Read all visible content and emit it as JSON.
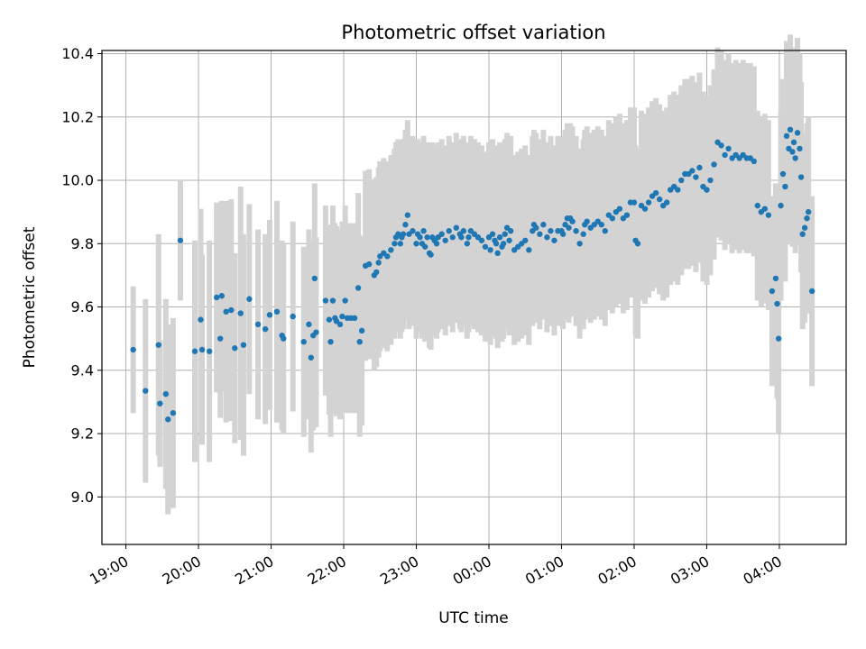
{
  "chart_data": {
    "type": "scatter",
    "title": "Photometric offset variation",
    "xlabel": "UTC time",
    "ylabel": "Photometric offset",
    "x_unit": "hours after 19:00 UTC",
    "xlim": [
      -0.33,
      9.92
    ],
    "ylim": [
      8.85,
      10.41
    ],
    "grid": true,
    "x_ticks": [
      {
        "value": 0,
        "label": "19:00"
      },
      {
        "value": 1,
        "label": "20:00"
      },
      {
        "value": 2,
        "label": "21:00"
      },
      {
        "value": 3,
        "label": "22:00"
      },
      {
        "value": 4,
        "label": "23:00"
      },
      {
        "value": 5,
        "label": "00:00"
      },
      {
        "value": 6,
        "label": "01:00"
      },
      {
        "value": 7,
        "label": "02:00"
      },
      {
        "value": 8,
        "label": "03:00"
      },
      {
        "value": 9,
        "label": "04:00"
      }
    ],
    "y_ticks": [
      {
        "value": 9.0,
        "label": "9.0"
      },
      {
        "value": 9.2,
        "label": "9.2"
      },
      {
        "value": 9.4,
        "label": "9.4"
      },
      {
        "value": 9.6,
        "label": "9.6"
      },
      {
        "value": 9.8,
        "label": "9.8"
      },
      {
        "value": 10.0,
        "label": "10.0"
      },
      {
        "value": 10.2,
        "label": "10.2"
      },
      {
        "value": 10.4,
        "label": "10.4"
      }
    ],
    "marker_color": "#1f77b4",
    "errorbar_color": "#d3d3d3",
    "points": [
      [
        0.1,
        9.465,
        0.2
      ],
      [
        0.27,
        9.335,
        0.29
      ],
      [
        0.45,
        9.48,
        0.35
      ],
      [
        0.47,
        9.295,
        0.2
      ],
      [
        0.55,
        9.325,
        0.3
      ],
      [
        0.58,
        9.245,
        0.3
      ],
      [
        0.65,
        9.265,
        0.3
      ],
      [
        0.75,
        9.81,
        0.19
      ],
      [
        0.95,
        9.46,
        0.35
      ],
      [
        1.03,
        9.56,
        0.35
      ],
      [
        1.05,
        9.465,
        0.3
      ],
      [
        1.15,
        9.46,
        0.35
      ],
      [
        1.25,
        9.63,
        0.3
      ],
      [
        1.3,
        9.5,
        0.25
      ],
      [
        1.32,
        9.635,
        0.3
      ],
      [
        1.38,
        9.585,
        0.35
      ],
      [
        1.45,
        9.59,
        0.35
      ],
      [
        1.5,
        9.47,
        0.3
      ],
      [
        1.58,
        9.58,
        0.4
      ],
      [
        1.62,
        9.48,
        0.35
      ],
      [
        1.7,
        9.625,
        0.3
      ],
      [
        1.82,
        9.545,
        0.3
      ],
      [
        1.92,
        9.53,
        0.3
      ],
      [
        1.98,
        9.575,
        0.3
      ],
      [
        2.08,
        9.585,
        0.35
      ],
      [
        2.15,
        9.51,
        0.3
      ],
      [
        2.17,
        9.5,
        0.3
      ],
      [
        2.3,
        9.57,
        0.3
      ],
      [
        2.45,
        9.49,
        0.3
      ],
      [
        2.52,
        9.545,
        0.3
      ],
      [
        2.55,
        9.44,
        0.3
      ],
      [
        2.58,
        9.51,
        0.3
      ],
      [
        2.6,
        9.69,
        0.3
      ],
      [
        2.62,
        9.52,
        0.3
      ],
      [
        2.75,
        9.62,
        0.3
      ],
      [
        2.8,
        9.56,
        0.3
      ],
      [
        2.82,
        9.49,
        0.3
      ],
      [
        2.85,
        9.62,
        0.3
      ],
      [
        2.88,
        9.565,
        0.3
      ],
      [
        2.9,
        9.555,
        0.3
      ],
      [
        2.95,
        9.545,
        0.3
      ],
      [
        2.98,
        9.57,
        0.3
      ],
      [
        3.02,
        9.62,
        0.3
      ],
      [
        3.05,
        9.565,
        0.3
      ],
      [
        3.1,
        9.565,
        0.3
      ],
      [
        3.15,
        9.565,
        0.3
      ],
      [
        3.2,
        9.66,
        0.3
      ],
      [
        3.22,
        9.49,
        0.3
      ],
      [
        3.25,
        9.525,
        0.3
      ],
      [
        3.3,
        9.73,
        0.3
      ],
      [
        3.35,
        9.735,
        0.3
      ],
      [
        3.42,
        9.7,
        0.3
      ],
      [
        3.45,
        9.71,
        0.3
      ],
      [
        3.48,
        9.74,
        0.3
      ],
      [
        3.5,
        9.76,
        0.3
      ],
      [
        3.55,
        9.77,
        0.3
      ],
      [
        3.6,
        9.76,
        0.3
      ],
      [
        3.65,
        9.78,
        0.3
      ],
      [
        3.7,
        9.8,
        0.3
      ],
      [
        3.72,
        9.82,
        0.3
      ],
      [
        3.75,
        9.83,
        0.3
      ],
      [
        3.78,
        9.8,
        0.3
      ],
      [
        3.8,
        9.82,
        0.3
      ],
      [
        3.82,
        9.83,
        0.3
      ],
      [
        3.85,
        9.86,
        0.3
      ],
      [
        3.88,
        9.89,
        0.3
      ],
      [
        3.9,
        9.83,
        0.3
      ],
      [
        3.95,
        9.84,
        0.3
      ],
      [
        4.0,
        9.8,
        0.3
      ],
      [
        4.02,
        9.83,
        0.3
      ],
      [
        4.05,
        9.82,
        0.3
      ],
      [
        4.08,
        9.8,
        0.3
      ],
      [
        4.1,
        9.84,
        0.3
      ],
      [
        4.12,
        9.79,
        0.3
      ],
      [
        4.15,
        9.82,
        0.3
      ],
      [
        4.18,
        9.77,
        0.3
      ],
      [
        4.2,
        9.765,
        0.3
      ],
      [
        4.22,
        9.82,
        0.3
      ],
      [
        4.25,
        9.81,
        0.3
      ],
      [
        4.28,
        9.8,
        0.3
      ],
      [
        4.3,
        9.82,
        0.3
      ],
      [
        4.35,
        9.83,
        0.3
      ],
      [
        4.4,
        9.81,
        0.3
      ],
      [
        4.45,
        9.84,
        0.3
      ],
      [
        4.5,
        9.82,
        0.3
      ],
      [
        4.55,
        9.85,
        0.3
      ],
      [
        4.6,
        9.83,
        0.3
      ],
      [
        4.62,
        9.82,
        0.3
      ],
      [
        4.65,
        9.84,
        0.3
      ],
      [
        4.7,
        9.8,
        0.3
      ],
      [
        4.72,
        9.82,
        0.3
      ],
      [
        4.75,
        9.84,
        0.3
      ],
      [
        4.8,
        9.83,
        0.3
      ],
      [
        4.85,
        9.82,
        0.3
      ],
      [
        4.9,
        9.81,
        0.3
      ],
      [
        4.95,
        9.79,
        0.3
      ],
      [
        5.0,
        9.82,
        0.3
      ],
      [
        5.02,
        9.78,
        0.3
      ],
      [
        5.05,
        9.83,
        0.3
      ],
      [
        5.08,
        9.81,
        0.3
      ],
      [
        5.1,
        9.8,
        0.3
      ],
      [
        5.12,
        9.77,
        0.3
      ],
      [
        5.15,
        9.82,
        0.3
      ],
      [
        5.18,
        9.79,
        0.3
      ],
      [
        5.2,
        9.8,
        0.3
      ],
      [
        5.22,
        9.83,
        0.3
      ],
      [
        5.25,
        9.85,
        0.3
      ],
      [
        5.28,
        9.81,
        0.3
      ],
      [
        5.3,
        9.84,
        0.3
      ],
      [
        5.35,
        9.78,
        0.3
      ],
      [
        5.4,
        9.79,
        0.3
      ],
      [
        5.45,
        9.8,
        0.3
      ],
      [
        5.5,
        9.81,
        0.3
      ],
      [
        5.55,
        9.78,
        0.3
      ],
      [
        5.6,
        9.84,
        0.3
      ],
      [
        5.62,
        9.86,
        0.3
      ],
      [
        5.65,
        9.85,
        0.3
      ],
      [
        5.7,
        9.83,
        0.3
      ],
      [
        5.75,
        9.86,
        0.3
      ],
      [
        5.8,
        9.82,
        0.3
      ],
      [
        5.85,
        9.84,
        0.3
      ],
      [
        5.9,
        9.81,
        0.3
      ],
      [
        5.95,
        9.84,
        0.3
      ],
      [
        6.0,
        9.84,
        0.3
      ],
      [
        6.02,
        9.83,
        0.3
      ],
      [
        6.05,
        9.86,
        0.3
      ],
      [
        6.08,
        9.88,
        0.3
      ],
      [
        6.1,
        9.85,
        0.3
      ],
      [
        6.12,
        9.88,
        0.3
      ],
      [
        6.15,
        9.87,
        0.3
      ],
      [
        6.2,
        9.84,
        0.3
      ],
      [
        6.25,
        9.8,
        0.3
      ],
      [
        6.3,
        9.83,
        0.3
      ],
      [
        6.32,
        9.86,
        0.3
      ],
      [
        6.35,
        9.87,
        0.3
      ],
      [
        6.4,
        9.85,
        0.3
      ],
      [
        6.45,
        9.86,
        0.3
      ],
      [
        6.5,
        9.87,
        0.3
      ],
      [
        6.55,
        9.86,
        0.3
      ],
      [
        6.6,
        9.84,
        0.3
      ],
      [
        6.65,
        9.89,
        0.3
      ],
      [
        6.7,
        9.88,
        0.3
      ],
      [
        6.75,
        9.9,
        0.3
      ],
      [
        6.8,
        9.91,
        0.3
      ],
      [
        6.85,
        9.88,
        0.3
      ],
      [
        6.9,
        9.89,
        0.3
      ],
      [
        6.95,
        9.93,
        0.3
      ],
      [
        7.0,
        9.93,
        0.3
      ],
      [
        7.02,
        9.81,
        0.3
      ],
      [
        7.05,
        9.8,
        0.3
      ],
      [
        7.1,
        9.92,
        0.3
      ],
      [
        7.15,
        9.91,
        0.3
      ],
      [
        7.2,
        9.93,
        0.3
      ],
      [
        7.25,
        9.95,
        0.3
      ],
      [
        7.3,
        9.96,
        0.3
      ],
      [
        7.35,
        9.94,
        0.3
      ],
      [
        7.4,
        9.92,
        0.3
      ],
      [
        7.45,
        9.93,
        0.3
      ],
      [
        7.5,
        9.97,
        0.3
      ],
      [
        7.55,
        9.98,
        0.3
      ],
      [
        7.6,
        9.97,
        0.3
      ],
      [
        7.65,
        10.0,
        0.3
      ],
      [
        7.7,
        10.02,
        0.3
      ],
      [
        7.75,
        10.02,
        0.3
      ],
      [
        7.8,
        10.03,
        0.3
      ],
      [
        7.85,
        10.01,
        0.3
      ],
      [
        7.9,
        10.04,
        0.3
      ],
      [
        7.95,
        9.98,
        0.3
      ],
      [
        8.0,
        9.97,
        0.3
      ],
      [
        8.05,
        10.0,
        0.3
      ],
      [
        8.1,
        10.05,
        0.3
      ],
      [
        8.15,
        10.12,
        0.3
      ],
      [
        8.2,
        10.11,
        0.3
      ],
      [
        8.25,
        10.08,
        0.3
      ],
      [
        8.3,
        10.1,
        0.3
      ],
      [
        8.35,
        10.07,
        0.3
      ],
      [
        8.4,
        10.08,
        0.3
      ],
      [
        8.45,
        10.07,
        0.3
      ],
      [
        8.5,
        10.08,
        0.3
      ],
      [
        8.55,
        10.07,
        0.3
      ],
      [
        8.6,
        10.07,
        0.3
      ],
      [
        8.65,
        10.06,
        0.3
      ],
      [
        8.7,
        9.92,
        0.3
      ],
      [
        8.75,
        9.9,
        0.3
      ],
      [
        8.8,
        9.91,
        0.3
      ],
      [
        8.85,
        9.89,
        0.3
      ],
      [
        8.9,
        9.65,
        0.3
      ],
      [
        8.95,
        9.69,
        0.3
      ],
      [
        8.97,
        9.61,
        0.3
      ],
      [
        8.99,
        9.5,
        0.3
      ],
      [
        9.02,
        9.92,
        0.3
      ],
      [
        9.05,
        10.02,
        0.3
      ],
      [
        9.08,
        9.98,
        0.3
      ],
      [
        9.1,
        10.14,
        0.3
      ],
      [
        9.13,
        10.1,
        0.3
      ],
      [
        9.15,
        10.16,
        0.3
      ],
      [
        9.18,
        10.09,
        0.3
      ],
      [
        9.2,
        10.12,
        0.3
      ],
      [
        9.22,
        10.07,
        0.3
      ],
      [
        9.25,
        10.15,
        0.3
      ],
      [
        9.28,
        10.1,
        0.3
      ],
      [
        9.3,
        10.01,
        0.3
      ],
      [
        9.32,
        9.83,
        0.3
      ],
      [
        9.35,
        9.85,
        0.3
      ],
      [
        9.38,
        9.88,
        0.3
      ],
      [
        9.4,
        9.9,
        0.3
      ],
      [
        9.45,
        9.65,
        0.3
      ]
    ]
  }
}
